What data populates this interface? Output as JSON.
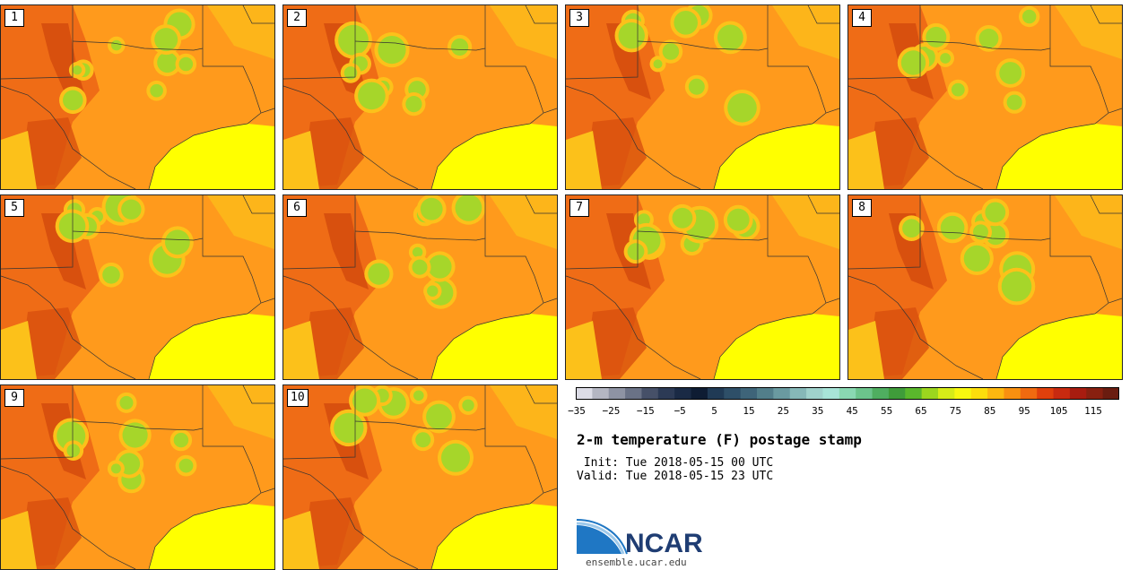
{
  "figure": {
    "title": "2-m temperature (F) postage stamp",
    "init_label": " Init: Tue 2018-05-15 00 UTC",
    "valid_label": "Valid: Tue 2018-05-15 23 UTC"
  },
  "members": [
    "1",
    "2",
    "3",
    "4",
    "5",
    "6",
    "7",
    "8",
    "9",
    "10"
  ],
  "colorbar": {
    "ticks": [
      "−35",
      "−25",
      "−15",
      "−5",
      "5",
      "15",
      "25",
      "35",
      "45",
      "55",
      "65",
      "75",
      "85",
      "95",
      "105",
      "115"
    ],
    "colors": [
      "#dcdce6",
      "#b4b6c2",
      "#8e93a3",
      "#6a7286",
      "#465068",
      "#2c3a55",
      "#1a2a45",
      "#0e1c33",
      "#203a55",
      "#2e4f68",
      "#3e6479",
      "#527e8a",
      "#6a9aa0",
      "#86b8b8",
      "#a0d2cc",
      "#a8e4d8",
      "#8ad8b2",
      "#6cc48c",
      "#4fae60",
      "#3f9c3a",
      "#5ab82c",
      "#9cd61e",
      "#d6ec18",
      "#f8f810",
      "#fcde0c",
      "#fcb810",
      "#f89010",
      "#f06a10",
      "#e0400c",
      "#c82a10",
      "#a81c10",
      "#882010",
      "#6a1c10"
    ]
  },
  "logo": {
    "text": "NCAR",
    "url": "ensemble.ucar.edu"
  },
  "map_colors": {
    "base": "#ff9a1c",
    "warm": "#ef6c16",
    "hot": "#d8500e",
    "cool": "#fcc11a",
    "green": "#a6d62a",
    "gulf": "#ffff00",
    "border": "#333333"
  }
}
